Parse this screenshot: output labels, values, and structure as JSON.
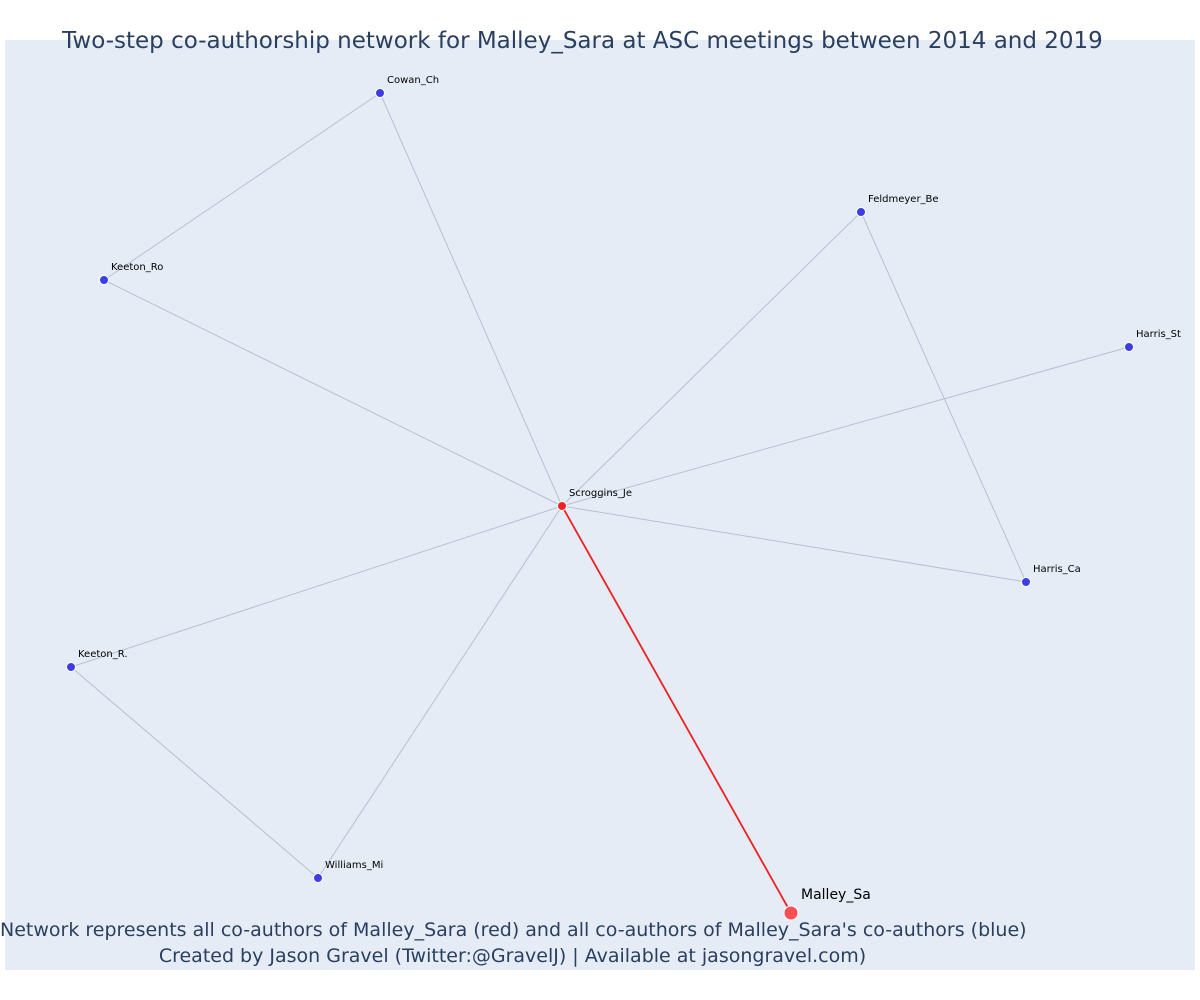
{
  "chart_data": {
    "type": "network",
    "title": "Two-step co-authorship network for Malley_Sara at ASC meetings between 2014 and 2019",
    "annotation_line1": "Network represents all co-authors of Malley_Sara (red) and all co-authors of Malley_Sara's co-authors (blue)",
    "annotation_line2": "Created by Jason Gravel (Twitter:@GravelJ) | Available at jasongravel.com)",
    "colors": {
      "background": "#e5ecf6",
      "edge": "#b9bfd2",
      "focal_edge": "#ee2222",
      "coauthor_node": "#ee2222",
      "second_step_node": "#3d3de6",
      "focal_node": "#ff4d55"
    },
    "nodes": [
      {
        "id": "Malley_Sa",
        "label": "Malley_Sa",
        "group": "focal"
      },
      {
        "id": "Scroggins_Je",
        "label": "Scroggins_Je",
        "group": "coauthor"
      },
      {
        "id": "Cowan_Ch",
        "label": "Cowan_Ch",
        "group": "second_step"
      },
      {
        "id": "Keeton_Ro",
        "label": "Keeton_Ro",
        "group": "second_step"
      },
      {
        "id": "Feldmeyer_Be",
        "label": "Feldmeyer_Be",
        "group": "second_step"
      },
      {
        "id": "Harris_St",
        "label": "Harris_St",
        "group": "second_step"
      },
      {
        "id": "Harris_Ca",
        "label": "Harris_Ca",
        "group": "second_step"
      },
      {
        "id": "Keeton_R.",
        "label": "Keeton_R.",
        "group": "second_step"
      },
      {
        "id": "Williams_Mi",
        "label": "Williams_Mi",
        "group": "second_step"
      }
    ],
    "edges": [
      {
        "source": "Malley_Sa",
        "target": "Scroggins_Je",
        "focal": true
      },
      {
        "source": "Scroggins_Je",
        "target": "Cowan_Ch"
      },
      {
        "source": "Scroggins_Je",
        "target": "Keeton_Ro"
      },
      {
        "source": "Scroggins_Je",
        "target": "Feldmeyer_Be"
      },
      {
        "source": "Scroggins_Je",
        "target": "Harris_St"
      },
      {
        "source": "Scroggins_Je",
        "target": "Harris_Ca"
      },
      {
        "source": "Scroggins_Je",
        "target": "Keeton_R."
      },
      {
        "source": "Scroggins_Je",
        "target": "Williams_Mi"
      },
      {
        "source": "Cowan_Ch",
        "target": "Keeton_Ro"
      },
      {
        "source": "Feldmeyer_Be",
        "target": "Harris_Ca"
      },
      {
        "source": "Keeton_R.",
        "target": "Williams_Mi"
      }
    ]
  }
}
